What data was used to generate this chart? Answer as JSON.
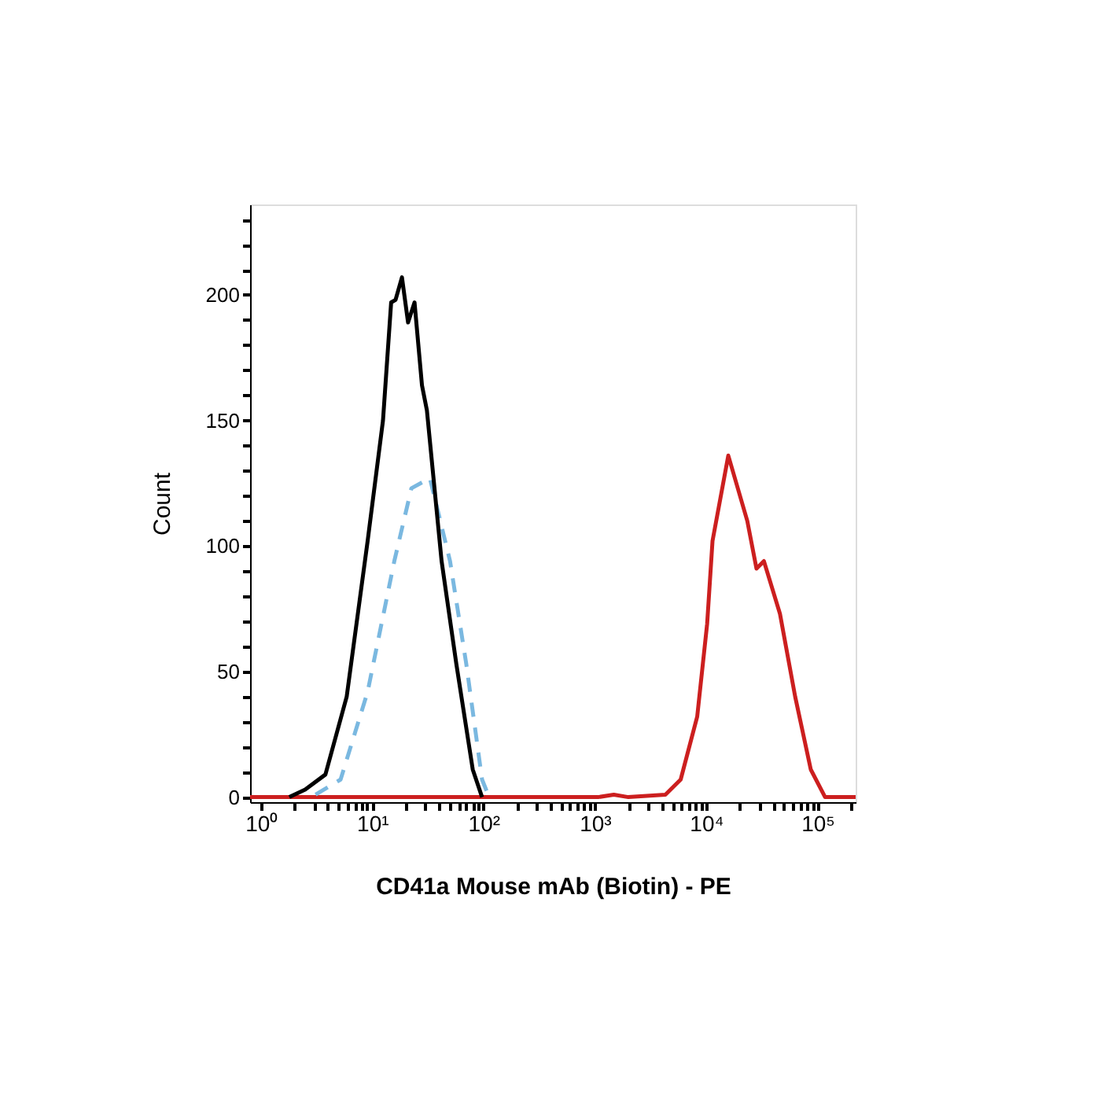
{
  "chart_data": {
    "type": "line",
    "xlabel": "CD41a Mouse mAb (Biotin) - PE",
    "ylabel": "Count",
    "log": "x",
    "grid": false,
    "legend": false,
    "marker": "none",
    "xlim": [
      0.8,
      220000
    ],
    "ylim": [
      -2,
      236
    ],
    "xticks": [
      {
        "value": 1,
        "label": "10⁰"
      },
      {
        "value": 2,
        "label": null
      },
      {
        "value": 3,
        "label": null
      },
      {
        "value": 4,
        "label": null
      },
      {
        "value": 5,
        "label": null
      },
      {
        "value": 6,
        "label": null
      },
      {
        "value": 7,
        "label": null
      },
      {
        "value": 8,
        "label": null
      },
      {
        "value": 9,
        "label": null
      },
      {
        "value": 10,
        "label": "10¹"
      },
      {
        "value": 20,
        "label": null
      },
      {
        "value": 30,
        "label": null
      },
      {
        "value": 40,
        "label": null
      },
      {
        "value": 50,
        "label": null
      },
      {
        "value": 60,
        "label": null
      },
      {
        "value": 70,
        "label": null
      },
      {
        "value": 80,
        "label": null
      },
      {
        "value": 90,
        "label": null
      },
      {
        "value": 100,
        "label": "10²"
      },
      {
        "value": 200,
        "label": null
      },
      {
        "value": 300,
        "label": null
      },
      {
        "value": 400,
        "label": null
      },
      {
        "value": 500,
        "label": null
      },
      {
        "value": 600,
        "label": null
      },
      {
        "value": 700,
        "label": null
      },
      {
        "value": 800,
        "label": null
      },
      {
        "value": 900,
        "label": null
      },
      {
        "value": 1000,
        "label": "10³"
      },
      {
        "value": 2000,
        "label": null
      },
      {
        "value": 3000,
        "label": null
      },
      {
        "value": 4000,
        "label": null
      },
      {
        "value": 5000,
        "label": null
      },
      {
        "value": 6000,
        "label": null
      },
      {
        "value": 7000,
        "label": null
      },
      {
        "value": 8000,
        "label": null
      },
      {
        "value": 9000,
        "label": null
      },
      {
        "value": 10000,
        "label": "10⁴"
      },
      {
        "value": 20000,
        "label": null
      },
      {
        "value": 30000,
        "label": null
      },
      {
        "value": 40000,
        "label": null
      },
      {
        "value": 50000,
        "label": null
      },
      {
        "value": 60000,
        "label": null
      },
      {
        "value": 70000,
        "label": null
      },
      {
        "value": 80000,
        "label": null
      },
      {
        "value": 90000,
        "label": null
      },
      {
        "value": 100000,
        "label": "10⁵"
      },
      {
        "value": 200000,
        "label": null
      }
    ],
    "yticks": [
      0,
      {
        "value": 10,
        "label": null
      },
      {
        "value": 20,
        "label": null
      },
      {
        "value": 30,
        "label": null
      },
      {
        "value": 40,
        "label": null
      },
      50,
      {
        "value": 60,
        "label": null
      },
      {
        "value": 70,
        "label": null
      },
      {
        "value": 80,
        "label": null
      },
      {
        "value": 90,
        "label": null
      },
      100,
      {
        "value": 110,
        "label": null
      },
      {
        "value": 120,
        "label": null
      },
      {
        "value": 130,
        "label": null
      },
      {
        "value": 140,
        "label": null
      },
      150,
      {
        "value": 160,
        "label": null
      },
      {
        "value": 170,
        "label": null
      },
      {
        "value": 180,
        "label": null
      },
      {
        "value": 190,
        "label": null
      },
      200,
      {
        "value": 210,
        "label": null
      },
      {
        "value": 220,
        "label": null
      },
      {
        "value": 230,
        "label": null
      }
    ],
    "series": [
      {
        "color": "#cc1f1f",
        "line_style": "solid",
        "x": [
          0.8,
          1070,
          1480,
          2000,
          4300,
          5900,
          8300,
          10200,
          11400,
          15800,
          23400,
          28300,
          33000,
          46000,
          63000,
          87000,
          117000,
          220000
        ],
        "values": [
          0,
          0,
          1,
          0,
          1,
          7,
          32,
          69,
          102,
          136,
          110,
          91,
          94,
          73,
          40,
          11,
          0,
          0
        ]
      },
      {
        "color": "#7ab8e0",
        "line_style": "dashed",
        "x": [
          3.1,
          5.2,
          9.1,
          15.8,
          22.5,
          33,
          50,
          70,
          97,
          110
        ],
        "values": [
          1,
          7,
          42,
          94,
          123,
          127,
          94,
          53,
          7,
          1
        ]
      },
      {
        "color": "#000000",
        "line_style": "solid",
        "x": [
          1.8,
          2.5,
          3.8,
          5.9,
          9.1,
          12.5,
          14.8,
          16.2,
          18.5,
          21,
          24,
          28,
          31,
          42,
          57,
          80,
          97
        ],
        "values": [
          0,
          3,
          9,
          40,
          102,
          150,
          197,
          198,
          207,
          189,
          197,
          164,
          154,
          94,
          53,
          11,
          0
        ]
      }
    ]
  }
}
